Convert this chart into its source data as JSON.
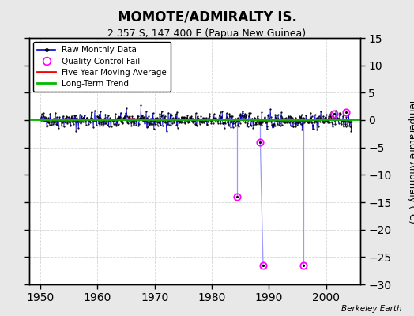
{
  "title": "MOMOTE/ADMIRALTY IS.",
  "subtitle": "2.357 S, 147.400 E (Papua New Guinea)",
  "ylabel": "Temperature Anomaly (°C)",
  "credit": "Berkeley Earth",
  "xlim": [
    1948,
    2006
  ],
  "ylim": [
    -30,
    15
  ],
  "yticks": [
    -30,
    -25,
    -20,
    -15,
    -10,
    -5,
    0,
    5,
    10,
    15
  ],
  "xticks": [
    1950,
    1960,
    1970,
    1980,
    1990,
    2000
  ],
  "fig_bg_color": "#e8e8e8",
  "plot_bg_color": "#ffffff",
  "raw_color": "#0000cc",
  "dot_color": "#000000",
  "moving_avg_color": "#ff0000",
  "trend_color": "#00bb00",
  "qc_fail_color": "#ff00ff",
  "qc_line_color": "#9999ff",
  "grid_color": "#cccccc",
  "qc_fail_points": [
    [
      1984.5,
      -14.0
    ],
    [
      1988.5,
      -4.0
    ],
    [
      1989.0,
      -26.5
    ],
    [
      1996.0,
      -26.5
    ],
    [
      2001.5,
      1.2
    ],
    [
      2003.5,
      1.5
    ]
  ],
  "qc_fail_lines": [
    [
      1984.5,
      0.1,
      1984.5,
      -14.0
    ],
    [
      1988.5,
      0.1,
      1988.5,
      -4.0
    ],
    [
      1988.5,
      -4.0,
      1989.0,
      -26.5
    ],
    [
      1996.0,
      0.1,
      1996.0,
      -26.5
    ]
  ],
  "seed": 42,
  "n_points": 648,
  "start_year": 1950.0,
  "end_year": 2004.5
}
